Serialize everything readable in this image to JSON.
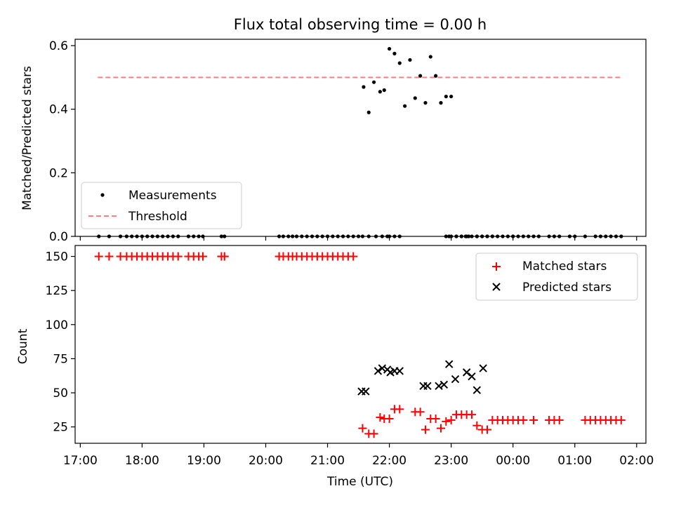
{
  "chart_data": [
    {
      "type": "scatter",
      "title": "Flux total observing time = 0.00 h",
      "xlabel": "",
      "ylabel": "Matched/Predicted stars",
      "ylim": [
        0,
        0.62
      ],
      "yticks": [
        0.0,
        0.2,
        0.4,
        0.6
      ],
      "ytick_labels": [
        "0.0",
        "0.2",
        "0.4",
        "0.6"
      ],
      "legend_position": "bottom-left",
      "threshold": {
        "name": "Threshold",
        "value": 0.5,
        "x_start": "17:17",
        "x_end": "01:46",
        "color": "#ff7f7f"
      },
      "series": [
        {
          "name": "Measurements",
          "color": "#000000",
          "x": [
            "17:18",
            "17:28",
            "17:39",
            "17:45",
            "17:50",
            "17:55",
            "18:00",
            "18:05",
            "18:10",
            "18:15",
            "18:20",
            "18:25",
            "18:30",
            "18:35",
            "18:45",
            "18:50",
            "18:55",
            "18:59",
            "19:17",
            "19:20",
            "20:13",
            "20:17",
            "20:22",
            "20:26",
            "20:30",
            "20:35",
            "20:40",
            "20:45",
            "20:50",
            "20:55",
            "21:00",
            "21:05",
            "21:10",
            "21:15",
            "21:20",
            "21:25",
            "21:30",
            "21:34",
            "21:40",
            "21:47",
            "21:53",
            "21:58",
            "22:00",
            "22:05",
            "22:10",
            "22:55",
            "22:58",
            "23:00",
            "23:05",
            "23:10",
            "23:14",
            "23:17",
            "23:25",
            "23:30",
            "23:35",
            "23:40",
            "00:00",
            "00:05",
            "00:10",
            "00:15",
            "00:20",
            "00:25",
            "00:35",
            "00:40",
            "00:45",
            "00:55",
            "01:00",
            "01:10",
            "01:20",
            "01:25",
            "01:30",
            "01:35",
            "01:40",
            "01:45",
            "21:35",
            "21:40",
            "21:45",
            "21:51",
            "21:55",
            "22:00",
            "22:05",
            "22:10",
            "22:15",
            "22:20",
            "22:25",
            "22:30",
            "22:35",
            "22:40",
            "22:45",
            "22:50",
            "22:55",
            "23:00",
            "23:05",
            "23:10",
            "23:15",
            "23:20",
            "23:25",
            "23:30",
            "23:35",
            "23:40",
            "23:45",
            "23:50",
            "23:55",
            "00:00"
          ],
          "y": [
            0,
            0,
            0,
            0,
            0,
            0,
            0,
            0,
            0,
            0,
            0,
            0,
            0,
            0,
            0,
            0,
            0,
            0,
            0,
            0,
            0,
            0,
            0,
            0,
            0,
            0,
            0,
            0,
            0,
            0,
            0,
            0,
            0,
            0,
            0,
            0,
            0,
            0,
            0,
            0,
            0,
            0,
            0,
            0,
            0,
            0,
            0,
            0,
            0,
            0,
            0,
            0,
            0,
            0,
            0,
            0,
            0,
            0,
            0,
            0,
            0,
            0,
            0,
            0,
            0,
            0,
            0,
            0,
            0,
            0,
            0,
            0,
            0,
            0,
            0.47,
            0.39,
            0.485,
            0.455,
            0.46,
            0.59,
            0.575,
            0.545,
            0.41,
            0.555,
            0.435,
            0.505,
            0.42,
            0.565,
            0.505,
            0.42,
            0.44,
            0.44,
            0,
            0,
            0,
            0,
            0,
            0,
            0,
            0,
            0,
            0,
            0,
            0
          ]
        }
      ]
    },
    {
      "type": "scatter",
      "title": "",
      "xlabel": "Time (UTC)",
      "ylabel": "Count",
      "xlim": [
        "16:55",
        "02:09"
      ],
      "ylim": [
        13,
        158
      ],
      "xticks": [
        "17:00",
        "18:00",
        "19:00",
        "20:00",
        "21:00",
        "22:00",
        "23:00",
        "00:00",
        "01:00",
        "02:00"
      ],
      "yticks": [
        25,
        50,
        75,
        100,
        125,
        150
      ],
      "ytick_labels": [
        "25",
        "50",
        "75",
        "100",
        "125",
        "150"
      ],
      "legend_position": "top-right",
      "series": [
        {
          "name": "Matched stars",
          "marker": "+",
          "color": "#ff0000",
          "x": [
            "17:18",
            "17:28",
            "17:39",
            "17:45",
            "17:50",
            "17:55",
            "18:00",
            "18:05",
            "18:10",
            "18:15",
            "18:20",
            "18:25",
            "18:30",
            "18:35",
            "18:45",
            "18:50",
            "18:55",
            "18:59",
            "19:17",
            "19:20",
            "20:13",
            "20:17",
            "20:22",
            "20:26",
            "20:30",
            "20:35",
            "20:40",
            "20:45",
            "20:50",
            "20:55",
            "21:00",
            "21:05",
            "21:10",
            "21:15",
            "21:20",
            "21:25",
            "21:34",
            "21:40",
            "21:45",
            "21:51",
            "21:55",
            "22:00",
            "22:05",
            "22:10",
            "22:25",
            "22:30",
            "22:35",
            "22:40",
            "22:45",
            "22:50",
            "22:55",
            "23:00",
            "23:05",
            "23:10",
            "23:15",
            "23:20",
            "23:25",
            "23:30",
            "23:35",
            "23:40",
            "23:45",
            "23:50",
            "23:55",
            "00:00",
            "00:05",
            "00:10",
            "00:20",
            "00:35",
            "00:40",
            "00:45",
            "01:10",
            "01:15",
            "01:20",
            "01:25",
            "01:30",
            "01:35",
            "01:40",
            "01:45"
          ],
          "y": [
            150,
            150,
            150,
            150,
            150,
            150,
            150,
            150,
            150,
            150,
            150,
            150,
            150,
            150,
            150,
            150,
            150,
            150,
            150,
            150,
            150,
            150,
            150,
            150,
            150,
            150,
            150,
            150,
            150,
            150,
            150,
            150,
            150,
            150,
            150,
            150,
            24,
            20,
            20,
            32,
            31,
            31,
            38,
            38,
            36,
            36,
            23,
            31,
            31,
            24,
            29,
            30,
            34,
            34,
            34,
            34,
            26,
            23,
            23,
            30,
            30,
            30,
            30,
            30,
            30,
            30,
            30,
            30,
            30,
            30,
            30,
            30,
            30,
            30,
            30,
            30,
            30,
            30
          ]
        },
        {
          "name": "Predicted stars",
          "marker": "x",
          "color": "#000000",
          "x": [
            "21:33",
            "21:37",
            "21:49",
            "21:53",
            "21:58",
            "22:01",
            "22:05",
            "22:10",
            "22:33",
            "22:37",
            "22:48",
            "22:53",
            "22:58",
            "23:04",
            "23:15",
            "23:20",
            "23:25",
            "23:31"
          ],
          "y": [
            51,
            51,
            66,
            68,
            67,
            65,
            66,
            66,
            55,
            55,
            55,
            56,
            71,
            60,
            65,
            62,
            52,
            68
          ]
        }
      ]
    }
  ]
}
